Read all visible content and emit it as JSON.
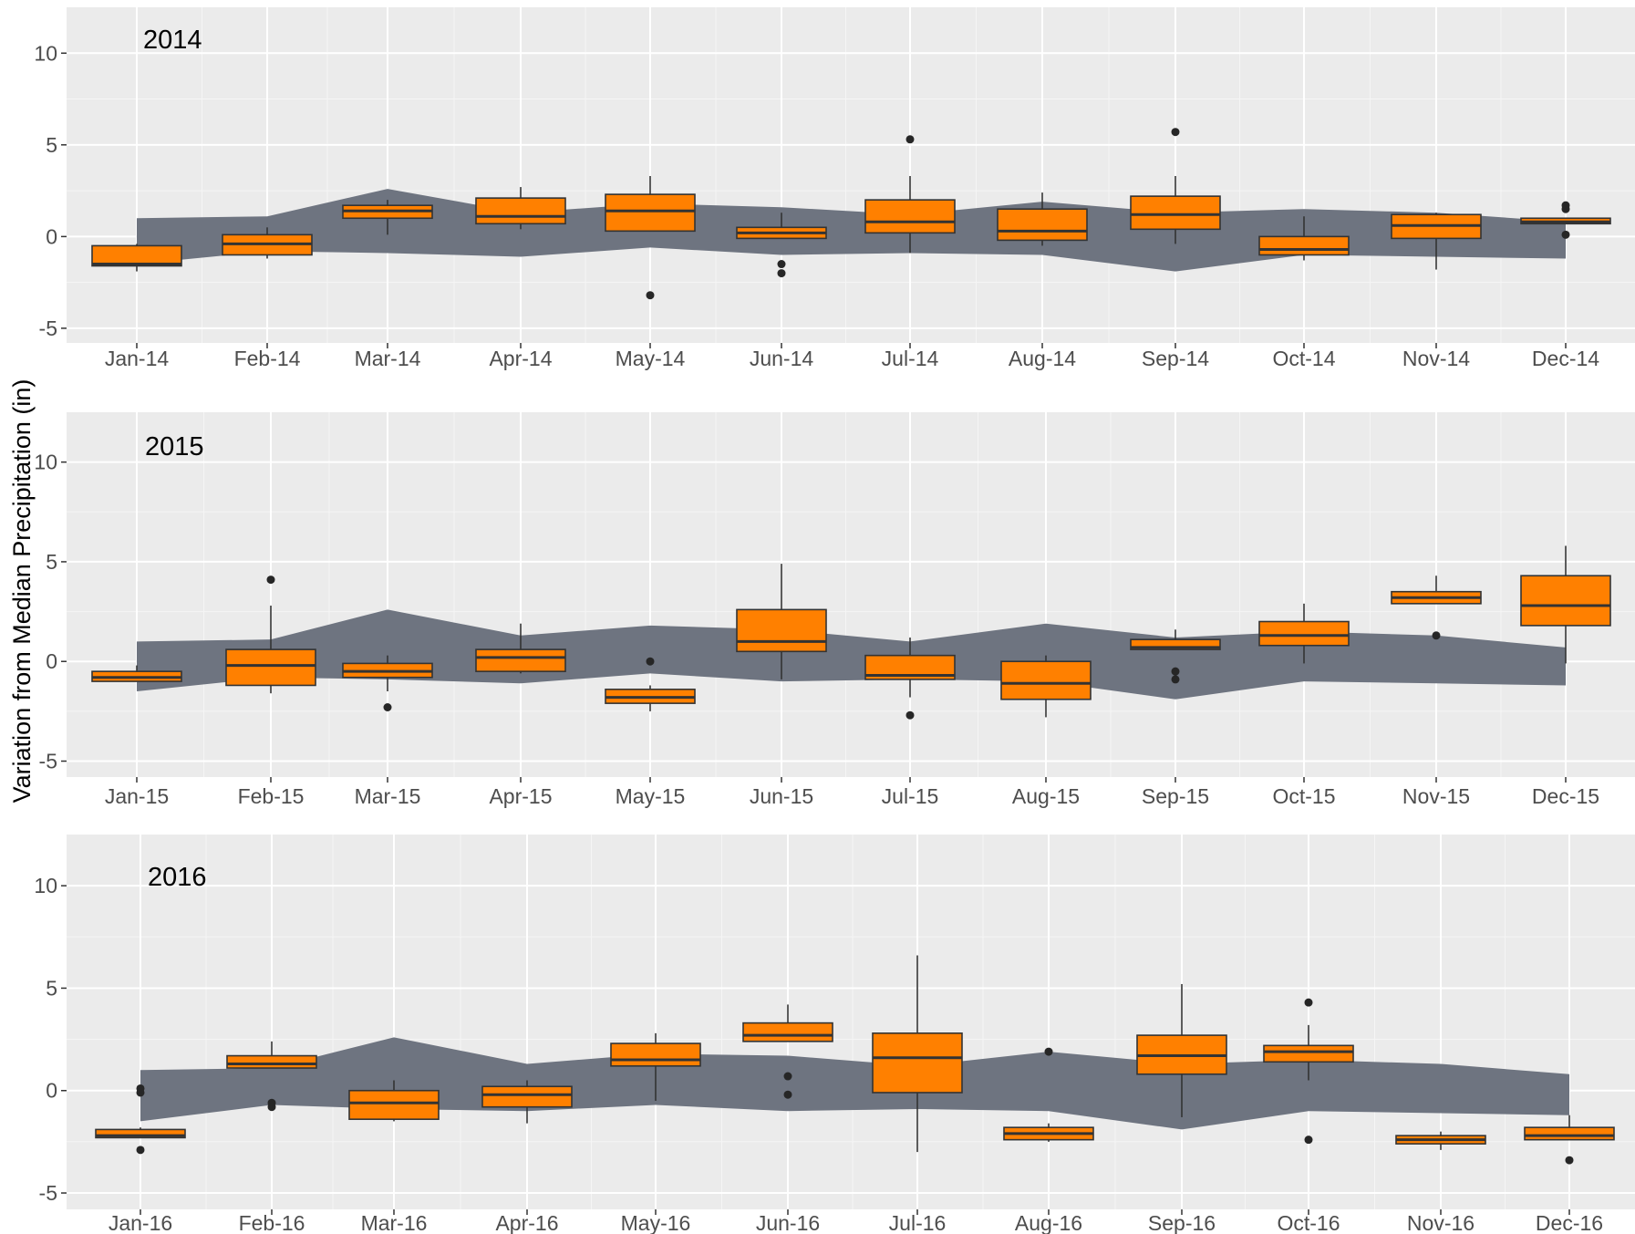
{
  "ylabel": "Variation from Median Precipitation (in)",
  "colors": {
    "panel_bg": "#ebebeb",
    "grid_major": "#ffffff",
    "grid_minor": "#f5f5f5",
    "band": "#6e7480",
    "box_fill": "#ff8000",
    "box_line": "#333333",
    "outlier": "#262626"
  },
  "chart_data": [
    {
      "type": "box",
      "title": "2014",
      "categories": [
        "Jan-14",
        "Feb-14",
        "Mar-14",
        "Apr-14",
        "May-14",
        "Jun-14",
        "Jul-14",
        "Aug-14",
        "Sep-14",
        "Oct-14",
        "Nov-14",
        "Dec-14"
      ],
      "ylim": [
        -5.8,
        12.5
      ],
      "yticks": [
        -5,
        0,
        5,
        10
      ],
      "ytick_labels": [
        "-5",
        "0",
        "5",
        "10"
      ],
      "grid": true,
      "band_upper": [
        1.0,
        1.1,
        2.6,
        1.3,
        1.8,
        1.6,
        1.2,
        1.9,
        1.3,
        1.5,
        1.3,
        0.8
      ],
      "band_lower": [
        -1.5,
        -0.8,
        -0.9,
        -1.1,
        -0.6,
        -1.0,
        -0.9,
        -1.0,
        -1.9,
        -1.0,
        -1.1,
        -1.2
      ],
      "boxes": [
        {
          "min": -1.9,
          "q1": -1.6,
          "median": -1.5,
          "q3": -0.5,
          "max": -0.4,
          "outliers": []
        },
        {
          "min": -1.2,
          "q1": -1.0,
          "median": -0.4,
          "q3": 0.1,
          "max": 0.5,
          "outliers": []
        },
        {
          "min": 0.1,
          "q1": 1.0,
          "median": 1.4,
          "q3": 1.7,
          "max": 2.0,
          "outliers": []
        },
        {
          "min": 0.4,
          "q1": 0.7,
          "median": 1.1,
          "q3": 2.1,
          "max": 2.7,
          "outliers": []
        },
        {
          "min": 0.3,
          "q1": 0.3,
          "median": 1.4,
          "q3": 2.3,
          "max": 3.3,
          "outliers": [
            -3.2
          ]
        },
        {
          "min": -0.1,
          "q1": -0.1,
          "median": 0.2,
          "q3": 0.5,
          "max": 1.3,
          "outliers": [
            -1.5,
            -2.0
          ]
        },
        {
          "min": -0.9,
          "q1": 0.2,
          "median": 0.8,
          "q3": 2.0,
          "max": 3.3,
          "outliers": [
            5.3
          ]
        },
        {
          "min": -0.5,
          "q1": -0.2,
          "median": 0.3,
          "q3": 1.5,
          "max": 2.4,
          "outliers": []
        },
        {
          "min": -0.4,
          "q1": 0.4,
          "median": 1.2,
          "q3": 2.2,
          "max": 3.3,
          "outliers": [
            5.7
          ]
        },
        {
          "min": -1.3,
          "q1": -1.0,
          "median": -0.7,
          "q3": 0.0,
          "max": 1.1,
          "outliers": []
        },
        {
          "min": -1.8,
          "q1": -0.1,
          "median": 0.6,
          "q3": 1.2,
          "max": 1.3,
          "outliers": []
        },
        {
          "min": 0.7,
          "q1": 0.7,
          "median": 0.8,
          "q3": 1.0,
          "max": 1.0,
          "outliers": [
            1.7,
            1.5,
            0.1
          ]
        }
      ]
    },
    {
      "type": "box",
      "title": "2015",
      "categories": [
        "Jan-15",
        "Feb-15",
        "Mar-15",
        "Apr-15",
        "May-15",
        "Jun-15",
        "Jul-15",
        "Aug-15",
        "Sep-15",
        "Oct-15",
        "Nov-15",
        "Dec-15"
      ],
      "ylim": [
        -5.8,
        12.5
      ],
      "yticks": [
        -5,
        0,
        5,
        10
      ],
      "ytick_labels": [
        "-5",
        "0",
        "5",
        "10"
      ],
      "grid": true,
      "band_upper": [
        1.0,
        1.1,
        2.6,
        1.3,
        1.8,
        1.6,
        1.0,
        1.9,
        1.2,
        1.5,
        1.3,
        0.7
      ],
      "band_lower": [
        -1.5,
        -0.8,
        -0.9,
        -1.1,
        -0.6,
        -1.0,
        -0.9,
        -1.0,
        -1.9,
        -1.0,
        -1.1,
        -1.2
      ],
      "boxes": [
        {
          "min": -1.0,
          "q1": -1.0,
          "median": -0.8,
          "q3": -0.5,
          "max": -0.2,
          "outliers": []
        },
        {
          "min": -1.6,
          "q1": -1.2,
          "median": -0.2,
          "q3": 0.6,
          "max": 2.8,
          "outliers": [
            4.1
          ]
        },
        {
          "min": -1.5,
          "q1": -0.8,
          "median": -0.5,
          "q3": -0.1,
          "max": 0.3,
          "outliers": [
            -2.3
          ]
        },
        {
          "min": -0.6,
          "q1": -0.5,
          "median": 0.2,
          "q3": 0.6,
          "max": 1.9,
          "outliers": []
        },
        {
          "min": -2.5,
          "q1": -2.1,
          "median": -1.8,
          "q3": -1.4,
          "max": -1.2,
          "outliers": [
            0.0
          ]
        },
        {
          "min": -0.9,
          "q1": 0.5,
          "median": 1.0,
          "q3": 2.6,
          "max": 4.9,
          "outliers": []
        },
        {
          "min": -1.8,
          "q1": -0.9,
          "median": -0.7,
          "q3": 0.3,
          "max": 1.2,
          "outliers": [
            -2.7
          ]
        },
        {
          "min": -2.8,
          "q1": -1.9,
          "median": -1.1,
          "q3": 0.0,
          "max": 0.3,
          "outliers": []
        },
        {
          "min": 0.6,
          "q1": 0.6,
          "median": 0.7,
          "q3": 1.1,
          "max": 1.6,
          "outliers": [
            -0.5,
            -0.9
          ]
        },
        {
          "min": -0.1,
          "q1": 0.8,
          "median": 1.3,
          "q3": 2.0,
          "max": 2.9,
          "outliers": []
        },
        {
          "min": 2.9,
          "q1": 2.9,
          "median": 3.2,
          "q3": 3.5,
          "max": 4.3,
          "outliers": [
            1.3
          ]
        },
        {
          "min": -0.1,
          "q1": 1.8,
          "median": 2.8,
          "q3": 4.3,
          "max": 5.8,
          "outliers": []
        }
      ]
    },
    {
      "type": "box",
      "title": "2016",
      "categories": [
        "Jan-16",
        "Feb-16",
        "Mar-16",
        "Apr-16",
        "May-16",
        "Jun-16",
        "Jul-16",
        "Aug-16",
        "Sep-16",
        "Oct-16",
        "Nov-16",
        "Dec-16"
      ],
      "ylim": [
        -5.8,
        12.5
      ],
      "yticks": [
        -5,
        0,
        5,
        10
      ],
      "ytick_labels": [
        "-5",
        "0",
        "5",
        "10"
      ],
      "grid": true,
      "band_upper": [
        1.0,
        1.1,
        2.6,
        1.3,
        1.8,
        1.7,
        1.2,
        1.9,
        1.3,
        1.5,
        1.3,
        0.8
      ],
      "band_lower": [
        -1.5,
        -0.7,
        -0.9,
        -1.0,
        -0.7,
        -1.0,
        -0.9,
        -1.0,
        -1.9,
        -1.0,
        -1.1,
        -1.2
      ],
      "boxes": [
        {
          "min": -2.3,
          "q1": -2.3,
          "median": -2.2,
          "q3": -1.9,
          "max": -1.8,
          "outliers": [
            0.1,
            -0.1,
            -2.9
          ]
        },
        {
          "min": 1.1,
          "q1": 1.1,
          "median": 1.3,
          "q3": 1.7,
          "max": 2.4,
          "outliers": [
            -0.6,
            -0.8
          ]
        },
        {
          "min": -1.5,
          "q1": -1.4,
          "median": -0.6,
          "q3": 0.0,
          "max": 0.5,
          "outliers": []
        },
        {
          "min": -1.6,
          "q1": -0.8,
          "median": -0.2,
          "q3": 0.2,
          "max": 0.5,
          "outliers": []
        },
        {
          "min": -0.5,
          "q1": 1.2,
          "median": 1.5,
          "q3": 2.3,
          "max": 2.8,
          "outliers": []
        },
        {
          "min": 2.4,
          "q1": 2.4,
          "median": 2.7,
          "q3": 3.3,
          "max": 4.2,
          "outliers": [
            0.7,
            -0.2
          ]
        },
        {
          "min": -3.0,
          "q1": -0.1,
          "median": 1.6,
          "q3": 2.8,
          "max": 6.6,
          "outliers": []
        },
        {
          "min": -2.5,
          "q1": -2.4,
          "median": -2.1,
          "q3": -1.8,
          "max": -1.6,
          "outliers": [
            1.9
          ]
        },
        {
          "min": -1.3,
          "q1": 0.8,
          "median": 1.7,
          "q3": 2.7,
          "max": 5.2,
          "outliers": []
        },
        {
          "min": 0.5,
          "q1": 1.4,
          "median": 1.9,
          "q3": 2.2,
          "max": 3.2,
          "outliers": [
            4.3,
            -2.4
          ]
        },
        {
          "min": -2.9,
          "q1": -2.6,
          "median": -2.4,
          "q3": -2.2,
          "max": -2.0,
          "outliers": []
        },
        {
          "min": -2.4,
          "q1": -2.4,
          "median": -2.2,
          "q3": -1.8,
          "max": -1.2,
          "outliers": [
            -3.4
          ]
        }
      ]
    }
  ]
}
